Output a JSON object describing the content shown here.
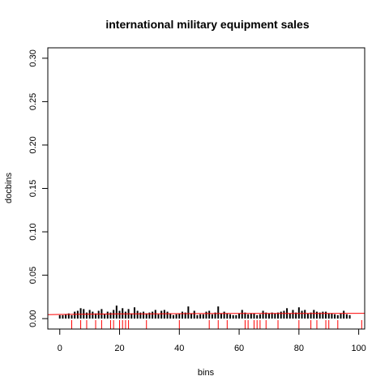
{
  "chart_data": {
    "type": "bar",
    "title": "international military equipment sales",
    "xlabel": "bins",
    "ylabel": "docbins",
    "xlim": [
      -4,
      102
    ],
    "ylim": [
      -0.012,
      0.312
    ],
    "x_ticks": [
      0,
      20,
      40,
      60,
      80,
      100
    ],
    "x_tick_labels": [
      "0",
      "20",
      "40",
      "60",
      "80",
      "100"
    ],
    "y_ticks": [
      0.0,
      0.05,
      0.1,
      0.15,
      0.2,
      0.25,
      0.3
    ],
    "y_tick_labels": [
      "0.00",
      "0.05",
      "0.10",
      "0.15",
      "0.20",
      "0.25",
      "0.30"
    ],
    "grid": false,
    "series": [
      {
        "style": "histogram-bars",
        "color": "#000000",
        "x": [
          0,
          1,
          2,
          3,
          4,
          5,
          6,
          7,
          8,
          9,
          10,
          11,
          12,
          13,
          14,
          15,
          16,
          17,
          18,
          19,
          20,
          21,
          22,
          23,
          24,
          25,
          26,
          27,
          28,
          29,
          30,
          31,
          32,
          33,
          34,
          35,
          36,
          37,
          38,
          39,
          40,
          41,
          42,
          43,
          44,
          45,
          46,
          47,
          48,
          49,
          50,
          51,
          52,
          53,
          54,
          55,
          56,
          57,
          58,
          59,
          60,
          61,
          62,
          63,
          64,
          65,
          66,
          67,
          68,
          69,
          70,
          71,
          72,
          73,
          74,
          75,
          76,
          77,
          78,
          79,
          80,
          81,
          82,
          83,
          84,
          85,
          86,
          87,
          88,
          89,
          90,
          91,
          92,
          93,
          94,
          95,
          96,
          97
        ],
        "values": [
          0.004,
          0.004,
          0.005,
          0.006,
          0.004,
          0.008,
          0.009,
          0.012,
          0.011,
          0.007,
          0.01,
          0.008,
          0.006,
          0.009,
          0.011,
          0.005,
          0.008,
          0.007,
          0.01,
          0.015,
          0.009,
          0.012,
          0.008,
          0.011,
          0.006,
          0.013,
          0.009,
          0.007,
          0.008,
          0.006,
          0.007,
          0.008,
          0.01,
          0.005,
          0.009,
          0.01,
          0.008,
          0.006,
          0.004,
          0.005,
          0.006,
          0.008,
          0.007,
          0.014,
          0.006,
          0.009,
          0.004,
          0.005,
          0.005,
          0.008,
          0.009,
          0.005,
          0.007,
          0.014,
          0.006,
          0.008,
          0.006,
          0.005,
          0.004,
          0.004,
          0.006,
          0.01,
          0.007,
          0.005,
          0.006,
          0.006,
          0.004,
          0.005,
          0.009,
          0.007,
          0.006,
          0.007,
          0.006,
          0.007,
          0.008,
          0.009,
          0.012,
          0.006,
          0.01,
          0.007,
          0.013,
          0.009,
          0.01,
          0.006,
          0.007,
          0.01,
          0.008,
          0.007,
          0.008,
          0.008,
          0.006,
          0.006,
          0.005,
          0.004,
          0.006,
          0.009,
          0.005,
          0.004
        ]
      },
      {
        "style": "rug",
        "color": "#ff0000",
        "x": [
          4,
          7,
          9,
          12,
          14,
          17,
          18,
          20,
          21,
          22,
          23,
          29,
          40,
          50,
          53,
          56,
          62,
          63,
          65,
          66,
          67,
          69,
          73,
          80,
          84,
          86,
          89,
          90,
          93,
          101
        ]
      },
      {
        "style": "smooth-line",
        "color": "#ff0000",
        "x": [
          -4,
          0,
          10,
          20,
          30,
          40,
          50,
          60,
          70,
          80,
          90,
          102
        ],
        "values": [
          0.0045,
          0.0048,
          0.0052,
          0.0055,
          0.0056,
          0.0057,
          0.0058,
          0.0059,
          0.0059,
          0.006,
          0.006,
          0.0061
        ]
      }
    ]
  }
}
